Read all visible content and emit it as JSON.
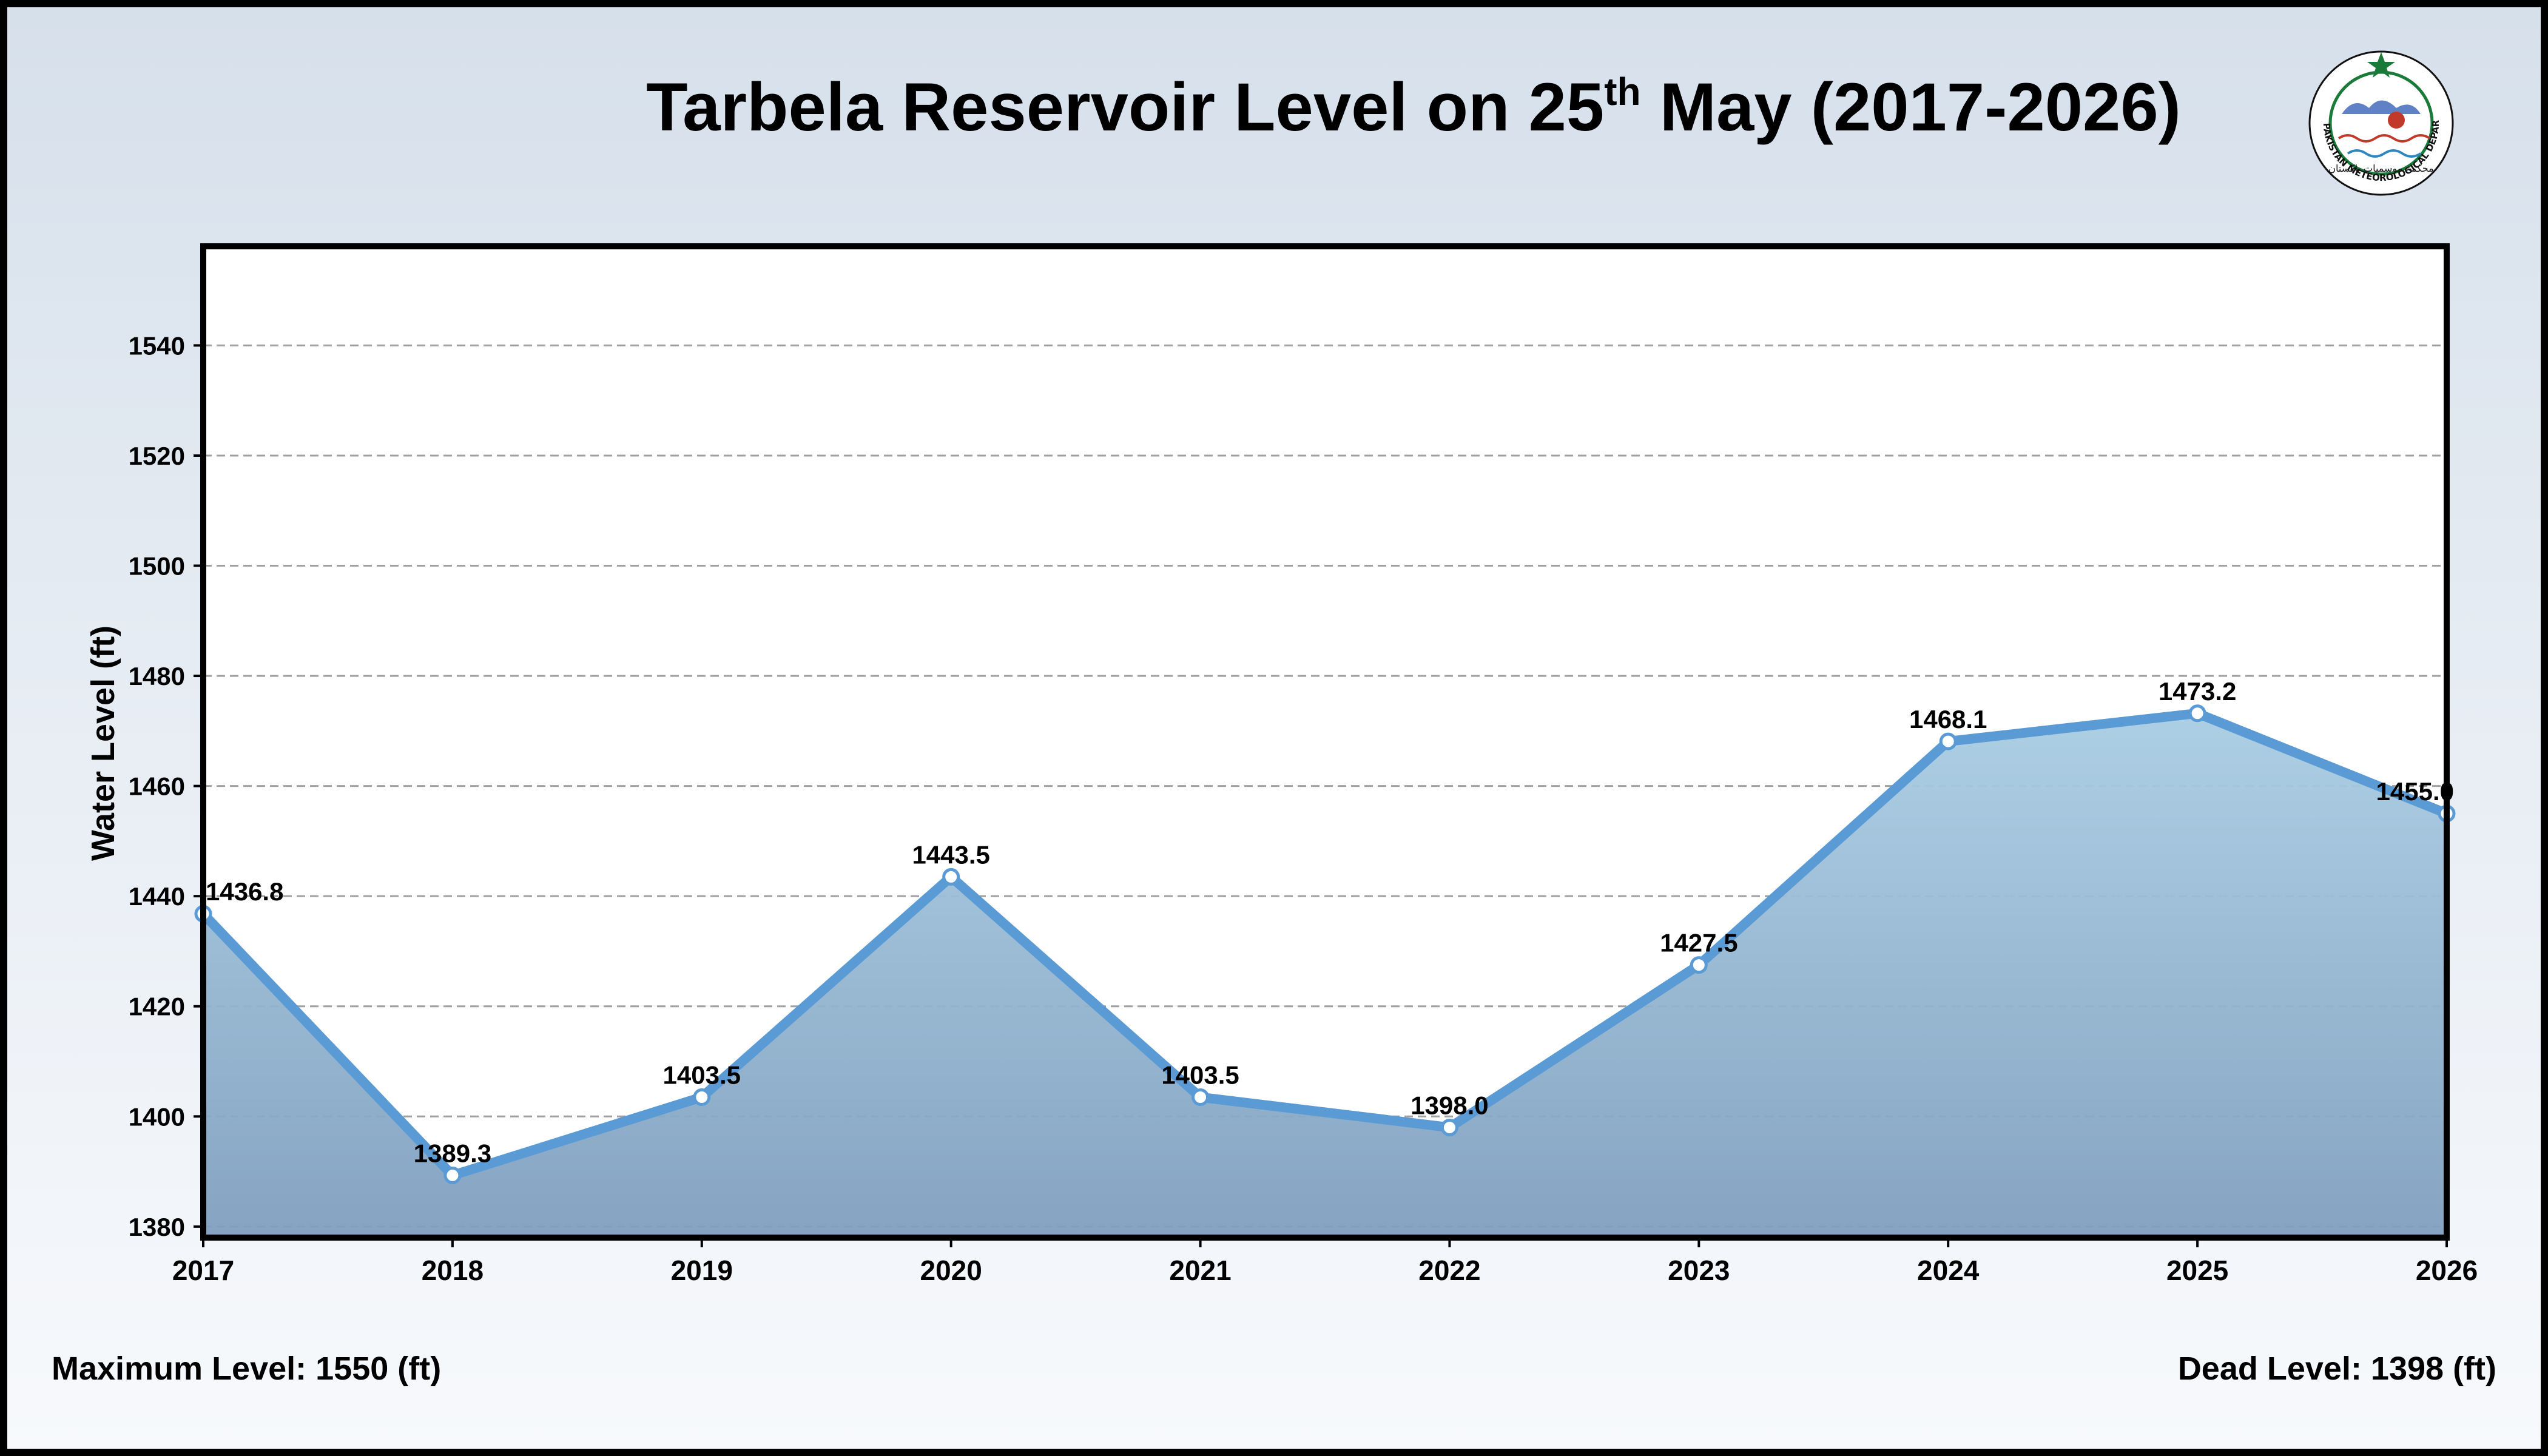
{
  "title": {
    "main": "Tarbela Reservoir Level on 25",
    "superscript": "th",
    "tail": "May (2017-2026)"
  },
  "footer": {
    "max_level": "Maximum Level: 1550 (ft)",
    "dead_level": "Dead Level: 1398 (ft)"
  },
  "logo": {
    "text_outer": "PAKISTAN METEOROLOGICAL DEPARTMENT",
    "text_urdu": "محکمہ موسمیات پاکستان"
  },
  "colors": {
    "line": "#5b9bd5",
    "fill_top": "#a9cde3",
    "fill_bottom": "#7f9fbf",
    "grid": "#a0a0a0",
    "star": "#1a7a3a"
  },
  "chart_data": {
    "type": "area",
    "title": "Tarbela Reservoir Level on 25th May (2017-2026)",
    "xlabel": "",
    "ylabel": "Water Level (ft)",
    "x": [
      "2017",
      "2018",
      "2019",
      "2020",
      "2021",
      "2022",
      "2023",
      "2024",
      "2025",
      "2026"
    ],
    "series": [
      {
        "values": [
          1436.8,
          1389.3,
          1403.5,
          1443.5,
          1403.5,
          1398.0,
          1427.5,
          1468.1,
          1473.2,
          1455.0
        ],
        "labels": [
          "1436.8",
          "1389.3",
          "1403.5",
          "1443.5",
          "1403.5",
          "1398.0",
          "1427.5",
          "1468.1",
          "1473.2",
          "1455.0"
        ]
      }
    ],
    "ylim": [
      1378,
      1558
    ],
    "yticks": [
      1380,
      1400,
      1420,
      1440,
      1460,
      1480,
      1500,
      1520,
      1540
    ],
    "grid": "horizontal-dashed",
    "legend": "none"
  }
}
